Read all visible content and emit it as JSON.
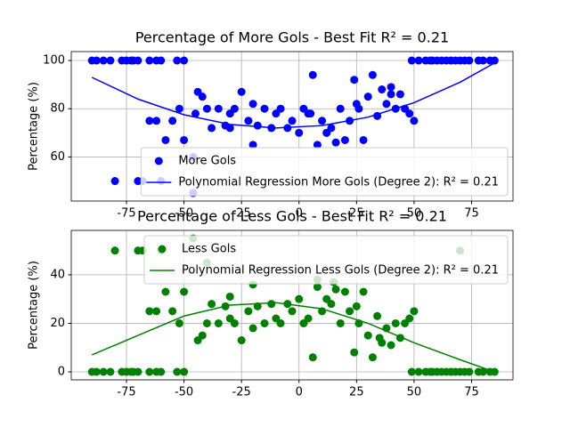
{
  "chart_data": [
    {
      "type": "scatter",
      "title": "Percentage of More Gols - Best Fit R² = 0.21",
      "y_label": "Percentage (%)",
      "xlim": [
        -99,
        93
      ],
      "ylim": [
        41.7,
        103.7
      ],
      "xticks": [
        -75,
        -50,
        -25,
        0,
        25,
        50,
        75
      ],
      "yticks": [
        60,
        80,
        100
      ],
      "grid": true,
      "legend": "lower right",
      "series": [
        {
          "name": "More Gols",
          "type": "scatter",
          "color": "#0000ff",
          "x": [
            -90,
            -88,
            -85,
            -82,
            -77,
            -75,
            -73,
            -72,
            -70,
            -65,
            -62,
            -60,
            -53,
            -50,
            -80,
            -70,
            -68,
            -60,
            -65,
            -62,
            -55,
            -58,
            -52,
            -50,
            -46,
            -44,
            -42,
            -40,
            -38,
            -35,
            -32,
            -30,
            -28,
            -25,
            -22,
            -20,
            -18,
            -15,
            -12,
            -10,
            -8,
            -5,
            -3,
            0,
            2,
            4,
            6,
            8,
            10,
            12,
            14,
            16,
            18,
            20,
            22,
            24,
            26,
            28,
            30,
            32,
            34,
            36,
            38,
            40,
            42,
            44,
            46,
            48,
            50,
            49,
            52,
            55,
            57,
            58,
            60,
            62,
            64,
            66,
            68,
            70,
            72,
            74,
            78,
            80,
            83,
            85,
            -46,
            -45,
            -30,
            -20,
            5,
            12,
            25,
            40
          ],
          "values": [
            100,
            100,
            100,
            100,
            100,
            100,
            100,
            100,
            100,
            100,
            100,
            100,
            100,
            100,
            50,
            50,
            50,
            50,
            75,
            75,
            75,
            67,
            80,
            67,
            45,
            87,
            85,
            80,
            72,
            80,
            73,
            78,
            80,
            87,
            75,
            82,
            73,
            80,
            72,
            78,
            80,
            72,
            75,
            70,
            80,
            78,
            94,
            65,
            75,
            70,
            72,
            66,
            80,
            67,
            75,
            92,
            80,
            67,
            85,
            94,
            77,
            88,
            82,
            89,
            80,
            86,
            80,
            78,
            75,
            100,
            100,
            100,
            100,
            100,
            100,
            100,
            100,
            100,
            100,
            100,
            100,
            100,
            100,
            100,
            100,
            100,
            60,
            78,
            72,
            65,
            78,
            70,
            82,
            86
          ]
        },
        {
          "name": "Polynomial Regression More Gols (Degree 2): R² = 0.21",
          "type": "line",
          "color": "#0000ff",
          "x": [
            -90,
            -70,
            -50,
            -30,
            -10,
            10,
            30,
            50,
            70,
            85
          ],
          "values": [
            93,
            84,
            77.5,
            73.5,
            72,
            73,
            76.5,
            82.5,
            91,
            99
          ]
        }
      ]
    },
    {
      "type": "scatter",
      "title": "Percentage of Less Gols - Best Fit R² = 0.21",
      "y_label": "Percentage (%)",
      "xlim": [
        -99,
        93
      ],
      "ylim": [
        -3.3,
        58.3
      ],
      "xticks": [
        -75,
        -50,
        -25,
        0,
        25,
        50,
        75
      ],
      "yticks": [
        0,
        20,
        40
      ],
      "grid": true,
      "legend": "upper right",
      "series": [
        {
          "name": "Less Gols",
          "type": "scatter",
          "color": "#008000",
          "x": [
            -90,
            -88,
            -85,
            -82,
            -77,
            -75,
            -73,
            -72,
            -70,
            -65,
            -62,
            -60,
            -53,
            -50,
            -80,
            -70,
            -68,
            -60,
            -65,
            -62,
            -55,
            -58,
            -52,
            -50,
            -46,
            -44,
            -42,
            -40,
            -38,
            -35,
            -32,
            -30,
            -28,
            -25,
            -22,
            -20,
            -18,
            -15,
            -12,
            -10,
            -8,
            -5,
            -3,
            0,
            2,
            4,
            6,
            8,
            10,
            12,
            14,
            16,
            18,
            20,
            22,
            24,
            26,
            28,
            30,
            32,
            34,
            36,
            38,
            40,
            42,
            44,
            46,
            48,
            50,
            49,
            52,
            55,
            57,
            58,
            60,
            62,
            64,
            66,
            68,
            70,
            72,
            74,
            78,
            80,
            83,
            85,
            70,
            -40,
            -30,
            -20,
            8,
            15,
            25,
            35
          ],
          "values": [
            0,
            0,
            0,
            0,
            0,
            0,
            0,
            0,
            0,
            0,
            0,
            0,
            0,
            0,
            50,
            50,
            50,
            50,
            25,
            25,
            25,
            33,
            20,
            33,
            55,
            13,
            15,
            20,
            28,
            20,
            27,
            22,
            20,
            13,
            25,
            18,
            27,
            20,
            28,
            22,
            20,
            28,
            25,
            30,
            20,
            22,
            6,
            35,
            25,
            30,
            28,
            34,
            20,
            33,
            25,
            8,
            20,
            33,
            15,
            6,
            23,
            12,
            18,
            11,
            20,
            14,
            20,
            22,
            25,
            0,
            0,
            0,
            0,
            0,
            0,
            0,
            0,
            0,
            0,
            0,
            0,
            0,
            0,
            0,
            0,
            0,
            50,
            45,
            31,
            36,
            38,
            37,
            27,
            14
          ]
        },
        {
          "name": "Polynomial Regression Less Gols (Degree 2): R² = 0.21",
          "type": "line",
          "color": "#008000",
          "x": [
            -90,
            -70,
            -50,
            -30,
            -10,
            10,
            30,
            50,
            70,
            82
          ],
          "values": [
            7,
            15,
            23,
            27.5,
            28.5,
            26,
            20,
            12,
            5,
            1
          ]
        }
      ]
    }
  ]
}
